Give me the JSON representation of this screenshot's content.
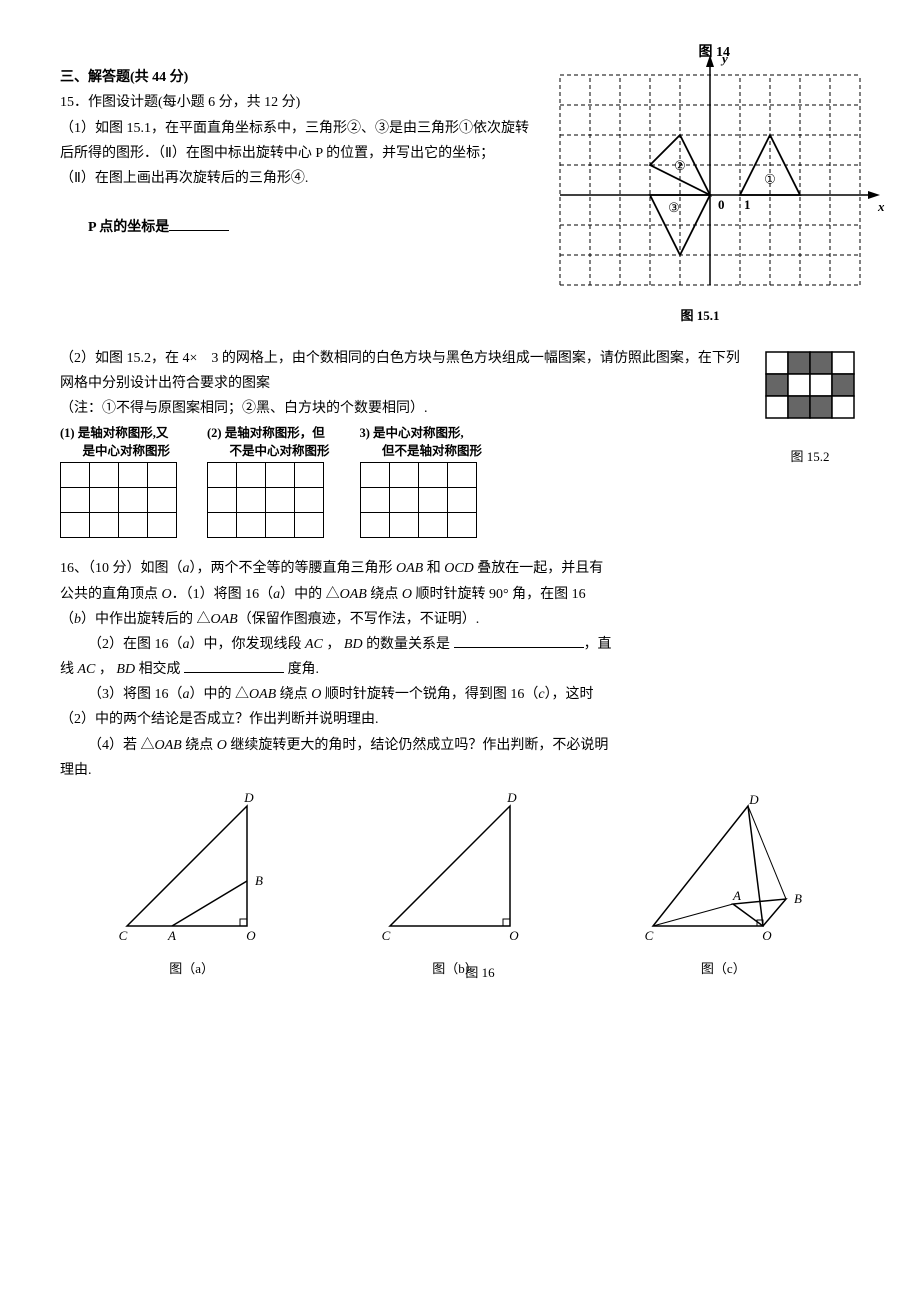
{
  "fig14_label": "图 14",
  "section3_title": "三、解答题(共 44 分)",
  "q15_header": "15．作图设计题(每小题 6 分，共 12 分)",
  "q15_p1": "（1）如图 15.1，在平面直角坐标系中，三角形②、③是由三角形①依次旋转后所得的图形．（Ⅱ）在图中标出旋转中心 P 的位置，并写出它的坐标；",
  "q15_p2": "（Ⅱ）在图上画出再次旋转后的三角形④.",
  "q15_ppoint_prefix": "P 点的坐标是",
  "fig15_1_label": "图 15.1",
  "q15_2_p1": "（2）如图 15.2，在 4×　3 的网格上，由个数相同的白色方块与黑色方块组成一幅图案，请仿照此图案，在下列网格中分别设计出符合要求的图案",
  "q15_2_note": "（注：①不得与原图案相同；②黑、白方块的个数要相同）.",
  "grid_caps": {
    "g1_l1": "(1)  是轴对称图形,又",
    "g1_l2": "是中心对称图形",
    "g2_l1": "(2)  是轴对称图形，但",
    "g2_l2": "不是中心对称图形",
    "g3_l1": "3)  是中心对称图形,",
    "g3_l2": "但不是轴对称图形"
  },
  "fig15_2_label": "图 15.2",
  "q16_p1a": "16、（10 分）如图（",
  "q16_p1b": "），两个不全等的等腰直角三角形 ",
  "q16_p1c": " 和 ",
  "q16_p1d": " 叠放在一起，并且有",
  "q16_p2a": "公共的直角顶点 ",
  "q16_p2b": "．（1）将图 16（",
  "q16_p2c": "）中的 △",
  "q16_p2d": " 绕点 ",
  "q16_p2e": " 顺时针旋转 90° 角，在图 16",
  "q16_p3a": "（",
  "q16_p3b": "）中作出旋转后的 △",
  "q16_p3c": "（保留作图痕迹，不写作法，不证明）.",
  "q16_p4a": "（2）在图 16（",
  "q16_p4b": "）中，你发现线段 ",
  "q16_p4c": " ， ",
  "q16_p4d": " 的数量关系是 ",
  "q16_p4e": "，直",
  "q16_p5a": "线 ",
  "q16_p5b": " ， ",
  "q16_p5c": " 相交成 ",
  "q16_p5d": " 度角.",
  "q16_p6a": "（3）将图 16（",
  "q16_p6b": "）中的 △",
  "q16_p6c": " 绕点 ",
  "q16_p6d": " 顺时针旋转一个锐角，得到图 16（",
  "q16_p6e": "），这时",
  "q16_p7": "（2）中的两个结论是否成立？作出判断并说明理由.",
  "q16_p8a": "（4）若 △",
  "q16_p8b": " 绕点 ",
  "q16_p8c": " 继续旋转更大的角时，结论仍然成立吗？作出判断，不必说明",
  "q16_p9": "理由.",
  "fig16_center": "图 16",
  "fig16_a": "图（a）",
  "fig16_b": "图（b）",
  "fig16_c": "图（c）",
  "sym": {
    "a": "a",
    "b": "b",
    "c": "c",
    "O": "O",
    "A": "A",
    "B": "B",
    "C": "C",
    "D": "D",
    "OAB": "OAB",
    "OCD": "OCD",
    "AC": "AC",
    "BD": "BD"
  },
  "axis": {
    "x": "x",
    "y": "y",
    "o": "0",
    "one": "1"
  },
  "circ": {
    "c1": "①",
    "c2": "②",
    "c3": "③"
  },
  "coord_plot": {
    "cell": 30,
    "xrange": [
      -5,
      5
    ],
    "yrange": [
      -3,
      4
    ],
    "grid_stroke": "#000",
    "grid_dash": "4,3",
    "axis_stroke": "#000",
    "t1": [
      [
        1,
        0
      ],
      [
        3,
        0
      ],
      [
        2,
        2
      ]
    ],
    "t2": [
      [
        -2,
        1
      ],
      [
        -1,
        2
      ],
      [
        0,
        0
      ]
    ],
    "t3": [
      [
        -2,
        0
      ],
      [
        -1,
        -2
      ],
      [
        0,
        0
      ]
    ]
  },
  "pattern_grid": {
    "rows": 3,
    "cols": 4,
    "black": [
      [
        0,
        1
      ],
      [
        0,
        2
      ],
      [
        1,
        0
      ],
      [
        1,
        3
      ],
      [
        2,
        1
      ],
      [
        2,
        2
      ]
    ],
    "cell": 22,
    "black_color": "#666"
  },
  "tri_fig": {
    "w": 150,
    "h": 150,
    "a": {
      "C": [
        15,
        135
      ],
      "O": [
        135,
        135
      ],
      "D": [
        135,
        15
      ],
      "A": [
        60,
        135
      ],
      "B": [
        135,
        90
      ]
    },
    "b": {
      "C": [
        15,
        135
      ],
      "O": [
        135,
        135
      ],
      "D": [
        135,
        15
      ]
    },
    "c": {
      "C": [
        15,
        135
      ],
      "O": [
        125,
        135
      ],
      "D": [
        110,
        15
      ],
      "A": [
        95,
        113
      ],
      "B": [
        148,
        108
      ]
    }
  }
}
